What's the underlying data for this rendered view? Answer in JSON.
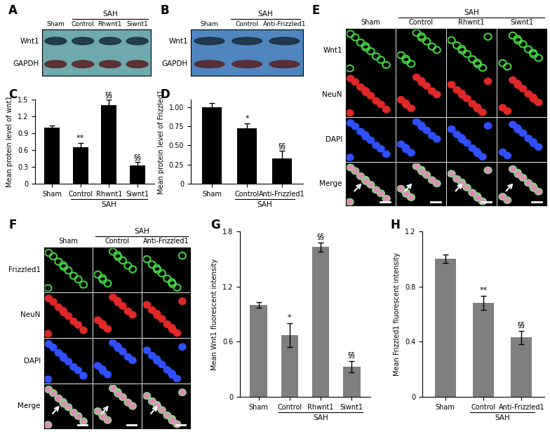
{
  "chart_data": [
    {
      "type": "bar",
      "panel": "C",
      "categories": [
        "Sham",
        "Control",
        "Rhwnt1",
        "Siwnt1"
      ],
      "values": [
        1.0,
        0.65,
        1.4,
        0.32
      ],
      "errors": [
        0.04,
        0.08,
        0.1,
        0.07
      ],
      "annotations": [
        null,
        "**",
        "§§",
        "§§"
      ],
      "group": {
        "label": "SAH",
        "categories": [
          "Control",
          "Rhwnt1",
          "Siwnt1"
        ]
      },
      "y_label": "Mean protein level of wnt1",
      "color": "#000000",
      "ylim": [
        0,
        1.5
      ],
      "yticks": [
        0,
        0.3,
        0.6,
        0.9,
        1.2,
        1.5
      ]
    },
    {
      "type": "bar",
      "panel": "D",
      "categories": [
        "Sham",
        "Control",
        "Anti-Frizzled1"
      ],
      "values": [
        1.0,
        0.72,
        0.33
      ],
      "errors": [
        0.05,
        0.07,
        0.1
      ],
      "annotations": [
        null,
        "*",
        "§§"
      ],
      "group": {
        "label": "SAH",
        "categories": [
          "Control",
          "Anti-Frizzled1"
        ]
      },
      "y_label": "Mean protein level of Frizzled1",
      "color": "#000000",
      "ylim": [
        0,
        1.1
      ],
      "yticks": [
        0,
        {
          "value": 0.25,
          "label": "0.25"
        },
        {
          "value": 0.5,
          "label": "0.50"
        },
        {
          "value": 0.75,
          "label": "0.75"
        },
        {
          "value": 1.0,
          "label": "1.00"
        }
      ]
    },
    {
      "type": "bar",
      "panel": "G",
      "categories": [
        "Sham",
        "Control",
        "Rhwnt1",
        "Siwnt1"
      ],
      "values": [
        1.0,
        0.67,
        1.63,
        0.33
      ],
      "errors": [
        0.03,
        0.13,
        0.05,
        0.06
      ],
      "annotations": [
        null,
        "*",
        "§§",
        "§§"
      ],
      "group": {
        "label": "SAH",
        "categories": [
          "Control",
          "Rhwnt1",
          "Siwnt1"
        ]
      },
      "y_label": "Mean Wnt1 fluorescent intensity",
      "color": "#7f7f7f",
      "ylim": [
        0,
        1.8
      ],
      "yticks": [
        0,
        0.6,
        1.2,
        1.8
      ]
    },
    {
      "type": "bar",
      "panel": "H",
      "categories": [
        "Sham",
        "Control",
        "Anti-Frizzled1"
      ],
      "values": [
        1.0,
        0.68,
        0.43
      ],
      "errors": [
        0.03,
        0.05,
        0.05
      ],
      "annotations": [
        null,
        "**",
        "§§"
      ],
      "group": {
        "label": "SAH",
        "categories": [
          "Control",
          "Anti-Frizzled1"
        ]
      },
      "y_label": "Mean Frizzled1 fluorescent intensity",
      "color": "#7f7f7f",
      "ylim": [
        0,
        1.2
      ],
      "yticks": [
        0,
        0.4,
        0.8,
        1.2
      ]
    }
  ],
  "blots": [
    {
      "panel": "A",
      "lanes": [
        "Sham",
        "Control",
        "Rhwnt1",
        "Siwnt1"
      ],
      "rows": [
        "Wnt1",
        "GAPDH"
      ],
      "group": {
        "label": "SAH",
        "lanes": [
          "Control",
          "Rhwnt1",
          "Siwnt1"
        ]
      }
    },
    {
      "panel": "B",
      "lanes": [
        "Sham",
        "Control",
        "Anti-Frizzled1"
      ],
      "rows": [
        "Wnt1",
        "GAPDH"
      ],
      "group": {
        "label": "SAH",
        "lanes": [
          "Control",
          "Anti-Frizzled1"
        ]
      }
    }
  ],
  "micrographs": [
    {
      "panel": "E",
      "columns": [
        "Sham",
        "Control",
        "Rhwnt1",
        "Siwnt1"
      ],
      "rows": [
        "Wnt1",
        "NeuN",
        "DAPI",
        "Merge"
      ],
      "group": {
        "label": "SAH",
        "columns": [
          "Control",
          "Rhwnt1",
          "Siwnt1"
        ]
      }
    },
    {
      "panel": "F",
      "columns": [
        "Sham",
        "Control",
        "Anti-Frizzled1"
      ],
      "rows": [
        "Frizzled1",
        "NeuN",
        "DAPI",
        "Merge"
      ],
      "group": {
        "label": "SAH",
        "columns": [
          "Control",
          "Anti-Frizzled1"
        ]
      }
    }
  ]
}
